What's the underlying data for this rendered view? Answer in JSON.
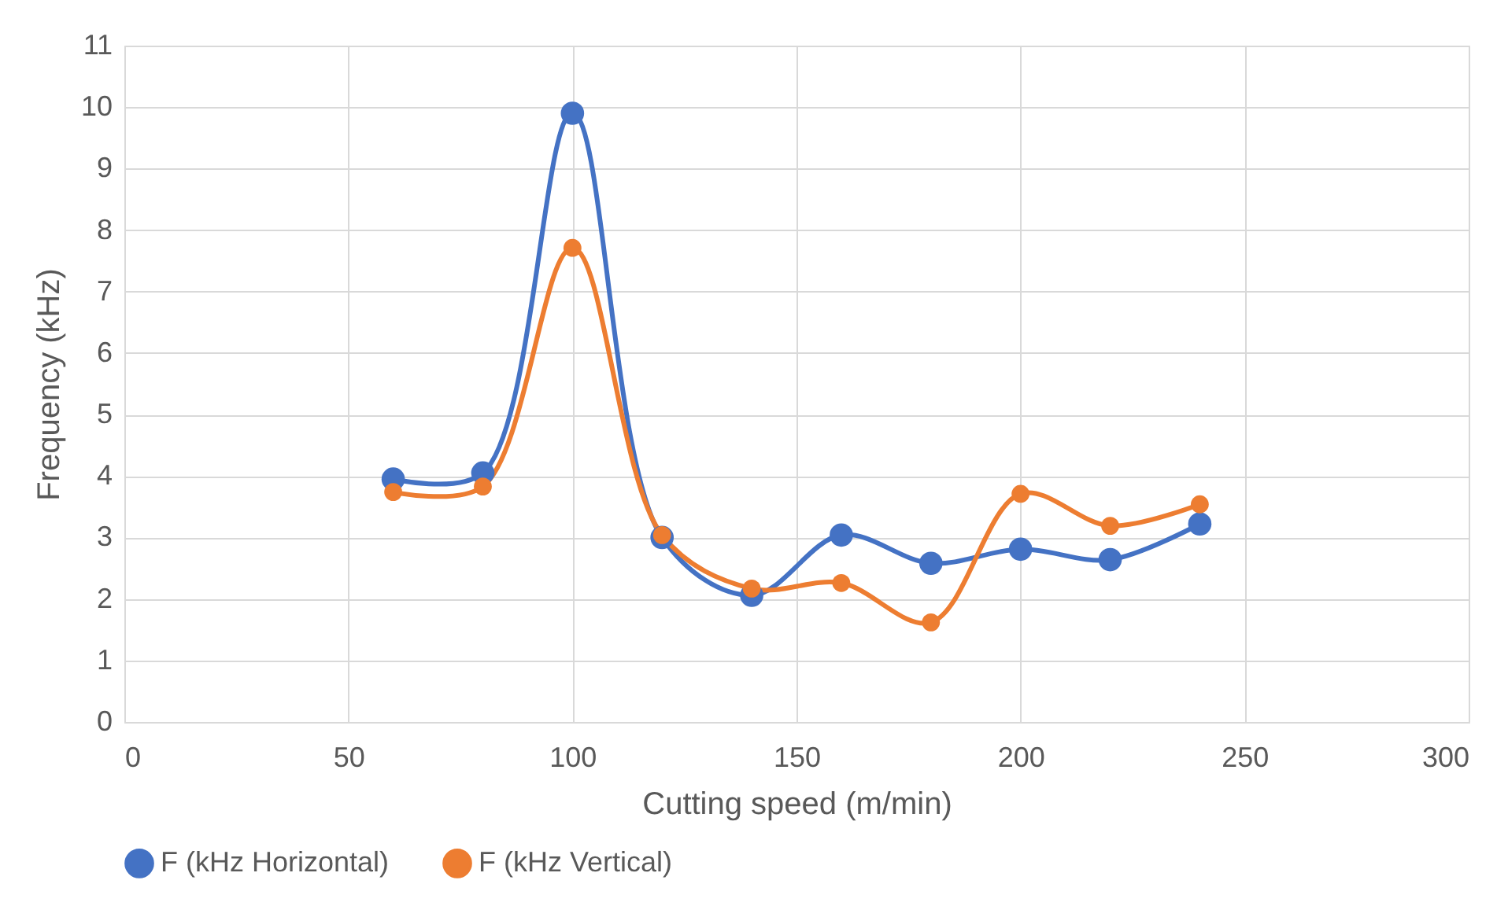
{
  "chart_data": {
    "type": "line",
    "xlabel": "Cutting speed (m/min)",
    "ylabel": "Frequency (kHz)",
    "x": [
      60,
      80,
      100,
      120,
      140,
      160,
      180,
      200,
      220,
      240
    ],
    "series": [
      {
        "name": "F (kHz Horizontal)",
        "color": "#4472c4",
        "values": [
          3.95,
          4.05,
          9.9,
          3.0,
          2.06,
          3.04,
          2.58,
          2.81,
          2.64,
          3.22
        ]
      },
      {
        "name": "F (kHz Vertical)",
        "color": "#ed7d31",
        "values": [
          3.74,
          3.83,
          7.71,
          3.04,
          2.17,
          2.26,
          1.62,
          3.71,
          3.19,
          3.54
        ]
      }
    ],
    "xlim": [
      0,
      300
    ],
    "xticks": [
      0,
      50,
      100,
      150,
      200,
      250,
      300
    ],
    "ylim": [
      0,
      11
    ],
    "yticks": [
      0,
      1,
      2,
      3,
      4,
      5,
      6,
      7,
      8,
      9,
      10,
      11
    ],
    "grid": true,
    "legend": "bottom",
    "marker": "circle",
    "line_style": "solid"
  }
}
